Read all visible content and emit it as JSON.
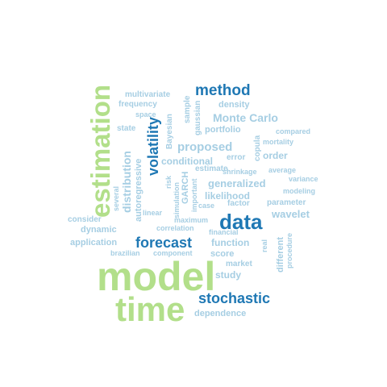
{
  "palette": {
    "light_green": "#b2df8a",
    "light_blue": "#a6cee3",
    "dark_blue": "#1f78b4"
  },
  "words": [
    {
      "id": "model",
      "text": "model",
      "color": "light_green"
    },
    {
      "id": "time",
      "text": "time",
      "color": "light_green"
    },
    {
      "id": "estimation",
      "text": "estimation",
      "color": "light_green"
    },
    {
      "id": "data",
      "text": "data",
      "color": "dark_blue"
    },
    {
      "id": "method",
      "text": "method",
      "color": "dark_blue"
    },
    {
      "id": "forecast",
      "text": "forecast",
      "color": "dark_blue"
    },
    {
      "id": "stochastic",
      "text": "stochastic",
      "color": "dark_blue"
    },
    {
      "id": "volatility",
      "text": "volatility",
      "color": "dark_blue"
    },
    {
      "id": "monte-carlo",
      "text": "Monte Carlo",
      "color": "light_blue"
    },
    {
      "id": "proposed",
      "text": "proposed",
      "color": "light_blue"
    },
    {
      "id": "distribution",
      "text": "distribution",
      "color": "light_blue"
    },
    {
      "id": "generalized",
      "text": "generalized",
      "color": "light_blue"
    },
    {
      "id": "wavelet",
      "text": "wavelet",
      "color": "light_blue"
    },
    {
      "id": "conditional",
      "text": "conditional",
      "color": "light_blue"
    },
    {
      "id": "order",
      "text": "order",
      "color": "light_blue"
    },
    {
      "id": "likelihood",
      "text": "likelihood",
      "color": "light_blue"
    },
    {
      "id": "function",
      "text": "function",
      "color": "light_blue"
    },
    {
      "id": "study",
      "text": "study",
      "color": "light_blue"
    },
    {
      "id": "density",
      "text": "density",
      "color": "light_blue"
    },
    {
      "id": "portfolio",
      "text": "portfolio",
      "color": "light_blue"
    },
    {
      "id": "score",
      "text": "score",
      "color": "light_blue"
    },
    {
      "id": "application",
      "text": "application",
      "color": "light_blue"
    },
    {
      "id": "dynamic",
      "text": "dynamic",
      "color": "light_blue"
    },
    {
      "id": "dependence",
      "text": "dependence",
      "color": "light_blue"
    },
    {
      "id": "autoregressive",
      "text": "autoregressive",
      "color": "light_blue"
    },
    {
      "id": "multivariate",
      "text": "multivariate",
      "color": "light_blue"
    },
    {
      "id": "frequency",
      "text": "frequency",
      "color": "light_blue"
    },
    {
      "id": "space",
      "text": "space",
      "color": "light_blue"
    },
    {
      "id": "state",
      "text": "state",
      "color": "light_blue"
    },
    {
      "id": "sample",
      "text": "sample",
      "color": "light_blue"
    },
    {
      "id": "gaussian",
      "text": "gaussian",
      "color": "light_blue"
    },
    {
      "id": "bayesian",
      "text": "Bayesian",
      "color": "light_blue"
    },
    {
      "id": "copula",
      "text": "copula",
      "color": "light_blue"
    },
    {
      "id": "compared",
      "text": "compared",
      "color": "light_blue"
    },
    {
      "id": "mortality",
      "text": "mortality",
      "color": "light_blue"
    },
    {
      "id": "error",
      "text": "error",
      "color": "light_blue"
    },
    {
      "id": "estimate",
      "text": "estimate",
      "color": "light_blue"
    },
    {
      "id": "shrinkage",
      "text": "shrinkage",
      "color": "light_blue"
    },
    {
      "id": "average",
      "text": "average",
      "color": "light_blue"
    },
    {
      "id": "variance",
      "text": "variance",
      "color": "light_blue"
    },
    {
      "id": "modeling",
      "text": "modeling",
      "color": "light_blue"
    },
    {
      "id": "parameter",
      "text": "parameter",
      "color": "light_blue"
    },
    {
      "id": "factor",
      "text": "factor",
      "color": "light_blue"
    },
    {
      "id": "case",
      "text": "case",
      "color": "light_blue"
    },
    {
      "id": "maximum",
      "text": "maximum",
      "color": "light_blue"
    },
    {
      "id": "linear",
      "text": "linear",
      "color": "light_blue"
    },
    {
      "id": "risk",
      "text": "risk",
      "color": "light_blue"
    },
    {
      "id": "simulation",
      "text": "simulation",
      "color": "light_blue"
    },
    {
      "id": "garch",
      "text": "GARCH",
      "color": "light_blue"
    },
    {
      "id": "important",
      "text": "important",
      "color": "light_blue"
    },
    {
      "id": "several",
      "text": "several",
      "color": "light_blue"
    },
    {
      "id": "consider",
      "text": "consider",
      "color": "light_blue"
    },
    {
      "id": "correlation",
      "text": "correlation",
      "color": "light_blue"
    },
    {
      "id": "financial",
      "text": "financial",
      "color": "light_blue"
    },
    {
      "id": "brazilian",
      "text": "brazilian",
      "color": "light_blue"
    },
    {
      "id": "component",
      "text": "component",
      "color": "light_blue"
    },
    {
      "id": "market",
      "text": "market",
      "color": "light_blue"
    },
    {
      "id": "real",
      "text": "real",
      "color": "light_blue"
    },
    {
      "id": "different",
      "text": "different",
      "color": "light_blue"
    },
    {
      "id": "procedure",
      "text": "procedure",
      "color": "light_blue"
    }
  ]
}
